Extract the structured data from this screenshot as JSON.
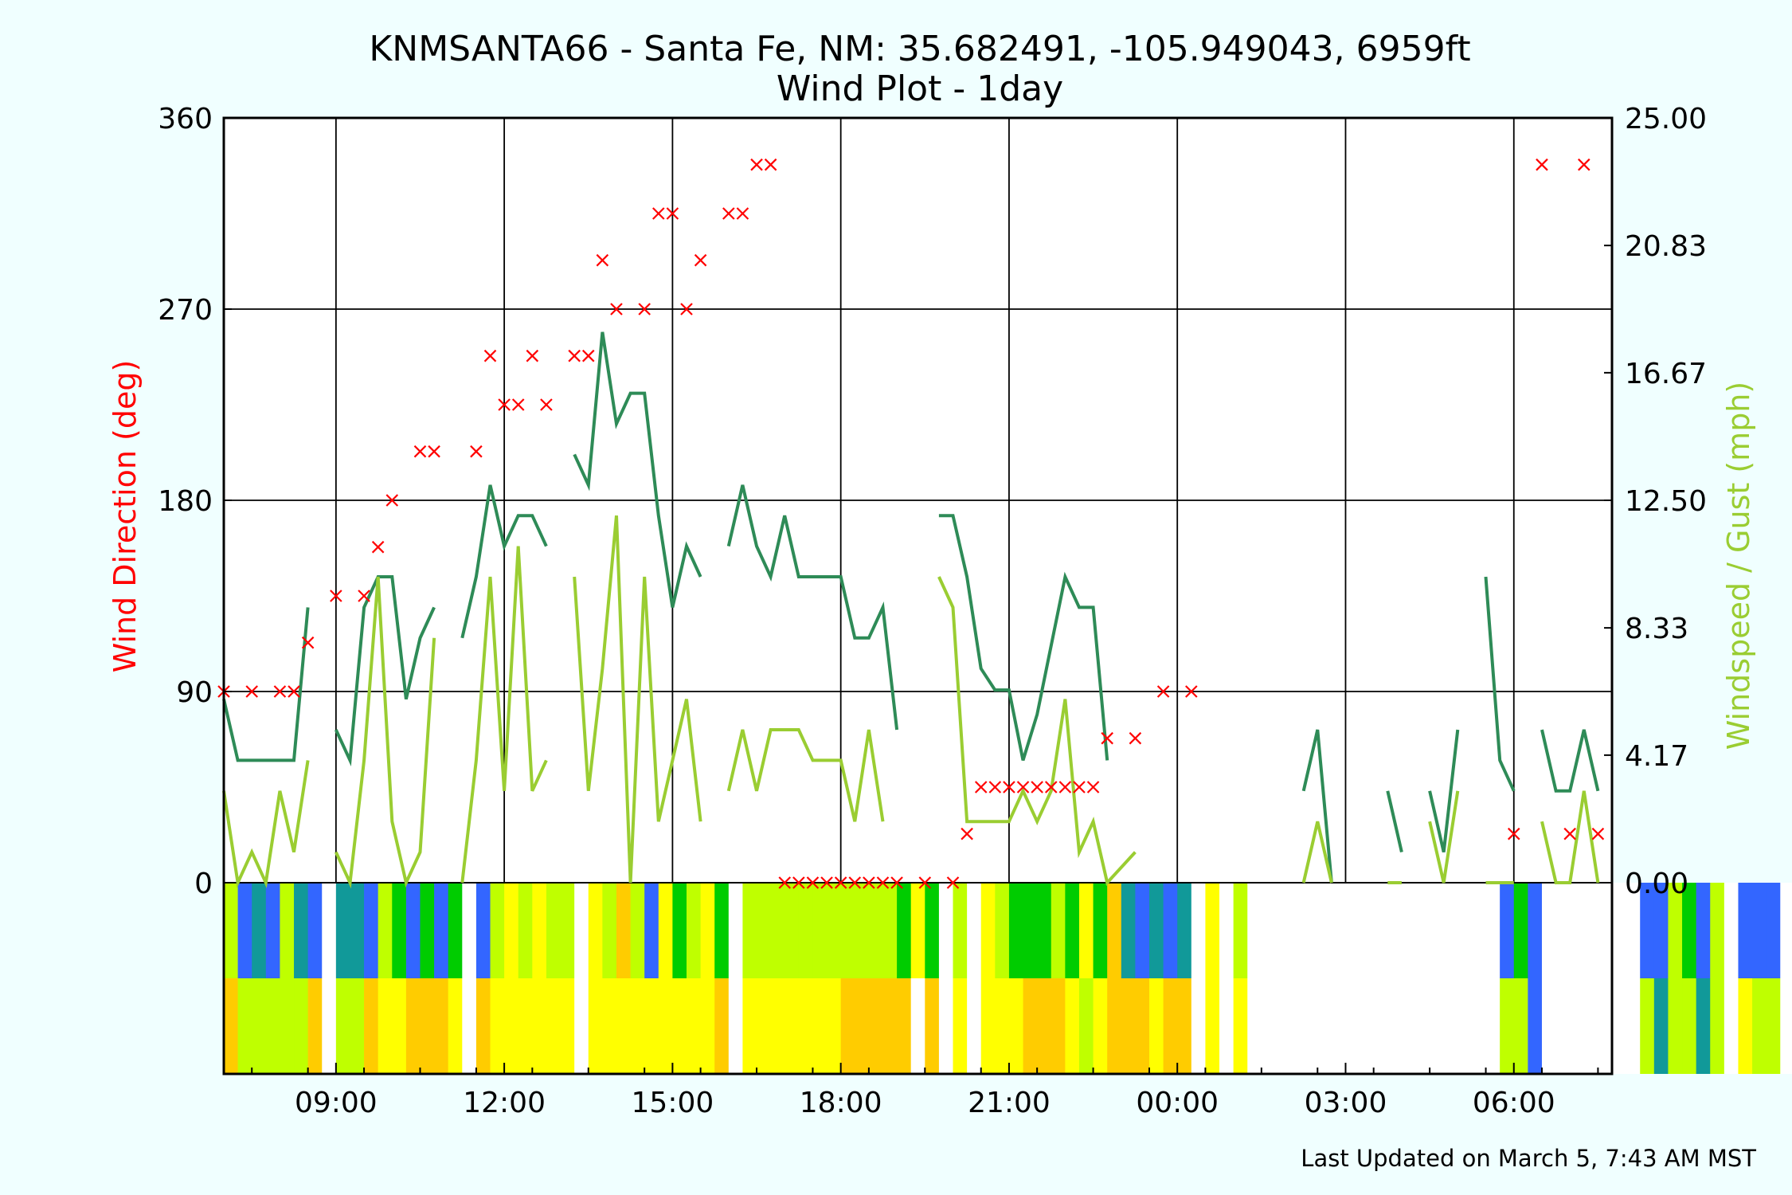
{
  "chart_data": {
    "type": "line",
    "title": "KNMSANTA66 - Santa Fe, NM: 35.682491, -105.949043, 6959ft",
    "subtitle": "Wind Plot - 1day",
    "footer": "Last Updated on March 5, 7:43 AM MST",
    "x_axis": {
      "range_hours": [
        0,
        24.75
      ],
      "tick_labels": [
        "09:00",
        "12:00",
        "15:00",
        "18:00",
        "21:00",
        "00:00",
        "03:00",
        "06:00"
      ],
      "tick_hours": [
        2,
        5,
        8,
        11,
        14,
        17,
        20,
        23
      ],
      "grid": true
    },
    "y_axis_left": {
      "label": "Wind Direction (deg)",
      "label_color": "#ff0000",
      "range": [
        -90,
        360
      ],
      "tick_labels": [
        "0",
        "90",
        "180",
        "270",
        "360"
      ],
      "ticks": [
        0,
        90,
        180,
        270,
        360
      ]
    },
    "y_axis_right": {
      "label": "Windspeed / Gust (mph)",
      "label_color": "#9acd32",
      "range": [
        0,
        25
      ],
      "tick_labels": [
        "0.00",
        "4.17",
        "8.33",
        "12.50",
        "16.67",
        "20.83",
        "25.00"
      ],
      "ticks": [
        0,
        4.17,
        8.33,
        12.5,
        16.67,
        20.83,
        25
      ]
    },
    "series": [
      {
        "kind": "scatter",
        "axis": "left",
        "color": "#ff0000",
        "marker": "x",
        "points": [
          [
            0,
            90
          ],
          [
            0.5,
            90
          ],
          [
            1,
            90
          ],
          [
            1.25,
            90
          ],
          [
            1.5,
            113
          ],
          [
            2,
            135
          ],
          [
            2.5,
            135
          ],
          [
            2.75,
            158
          ],
          [
            3,
            180
          ],
          [
            3.5,
            203
          ],
          [
            3.75,
            203
          ],
          [
            4.5,
            203
          ],
          [
            4.75,
            248
          ],
          [
            5,
            225
          ],
          [
            5.25,
            225
          ],
          [
            5.5,
            248
          ],
          [
            5.75,
            225
          ],
          [
            6.25,
            248
          ],
          [
            6.5,
            248
          ],
          [
            6.75,
            293
          ],
          [
            7,
            270
          ],
          [
            7.5,
            270
          ],
          [
            7.75,
            315
          ],
          [
            8,
            315
          ],
          [
            8.25,
            270
          ],
          [
            8.5,
            293
          ],
          [
            9,
            315
          ],
          [
            9.25,
            315
          ],
          [
            9.5,
            338
          ],
          [
            9.75,
            338
          ],
          [
            10,
            0
          ],
          [
            10.25,
            0
          ],
          [
            10.5,
            0
          ],
          [
            10.75,
            0
          ],
          [
            11,
            0
          ],
          [
            11.25,
            0
          ],
          [
            11.5,
            0
          ],
          [
            11.75,
            0
          ],
          [
            12,
            0
          ],
          [
            12.5,
            0
          ],
          [
            13,
            0
          ],
          [
            13.25,
            23
          ],
          [
            13.5,
            45
          ],
          [
            13.75,
            45
          ],
          [
            14,
            45
          ],
          [
            14.25,
            45
          ],
          [
            14.5,
            45
          ],
          [
            14.75,
            45
          ],
          [
            15,
            45
          ],
          [
            15.25,
            45
          ],
          [
            15.5,
            45
          ],
          [
            15.75,
            68
          ],
          [
            16.25,
            68
          ],
          [
            16.75,
            90
          ],
          [
            17.25,
            90
          ],
          [
            23,
            23
          ],
          [
            24,
            23
          ],
          [
            24.5,
            23
          ],
          [
            23.5,
            338
          ],
          [
            24.25,
            338
          ]
        ]
      },
      {
        "kind": "line",
        "axis": "right",
        "color": "#2e8b57",
        "segments": [
          [
            [
              0,
              6
            ],
            [
              0.25,
              4
            ],
            [
              1.25,
              4
            ],
            [
              1.5,
              9
            ]
          ],
          [
            [
              2,
              5
            ],
            [
              2.25,
              4
            ],
            [
              2.5,
              9
            ],
            [
              2.75,
              10
            ],
            [
              3,
              10
            ],
            [
              3.25,
              6
            ],
            [
              3.5,
              8
            ],
            [
              3.75,
              9
            ]
          ],
          [
            [
              4.25,
              8
            ],
            [
              4.5,
              10
            ],
            [
              4.75,
              13
            ],
            [
              5,
              11
            ],
            [
              5.25,
              12
            ],
            [
              5.5,
              12
            ],
            [
              5.75,
              11
            ]
          ],
          [
            [
              6.25,
              14
            ],
            [
              6.5,
              13
            ],
            [
              6.75,
              18
            ],
            [
              7,
              15
            ],
            [
              7.25,
              16
            ],
            [
              7.5,
              16
            ],
            [
              7.75,
              12
            ],
            [
              8,
              9
            ],
            [
              8.25,
              11
            ],
            [
              8.5,
              10
            ]
          ],
          [
            [
              9,
              11
            ],
            [
              9.25,
              13
            ],
            [
              9.5,
              11
            ],
            [
              9.75,
              10
            ],
            [
              10,
              12
            ],
            [
              10.25,
              10
            ],
            [
              11,
              10
            ],
            [
              11.25,
              8
            ],
            [
              11.5,
              8
            ],
            [
              11.75,
              9
            ],
            [
              12,
              5
            ]
          ],
          [
            [
              12.75,
              12
            ],
            [
              13,
              12
            ],
            [
              13.25,
              10
            ],
            [
              13.5,
              7
            ],
            [
              13.75,
              6.3
            ],
            [
              14,
              6.3
            ],
            [
              14.25,
              4
            ],
            [
              14.5,
              5.5
            ],
            [
              15,
              10
            ],
            [
              15.25,
              9
            ],
            [
              15.5,
              9
            ],
            [
              15.75,
              4
            ]
          ],
          [
            [
              19.25,
              3
            ],
            [
              19.5,
              5
            ],
            [
              19.75,
              0
            ]
          ],
          [
            [
              20.75,
              3
            ],
            [
              21,
              1
            ]
          ],
          [
            [
              21.5,
              3
            ],
            [
              21.75,
              1
            ],
            [
              22,
              5
            ]
          ],
          [
            [
              22.5,
              10
            ],
            [
              22.75,
              4
            ],
            [
              23,
              3
            ]
          ],
          [
            [
              23.5,
              5
            ],
            [
              23.75,
              3
            ],
            [
              24,
              3
            ],
            [
              24.25,
              5
            ],
            [
              24.5,
              3
            ]
          ]
        ]
      },
      {
        "kind": "line",
        "axis": "right",
        "color": "#9acd32",
        "segments": [
          [
            [
              0,
              3
            ],
            [
              0.25,
              0
            ],
            [
              0.5,
              1
            ],
            [
              0.75,
              0
            ],
            [
              1,
              3
            ],
            [
              1.25,
              1
            ],
            [
              1.5,
              4
            ]
          ],
          [
            [
              2,
              1
            ],
            [
              2.25,
              0
            ],
            [
              2.5,
              4
            ],
            [
              2.75,
              10
            ],
            [
              3,
              2
            ],
            [
              3.25,
              0
            ],
            [
              3.5,
              1
            ],
            [
              3.75,
              8
            ]
          ],
          [
            [
              4.25,
              0
            ],
            [
              4.5,
              4
            ],
            [
              4.75,
              10
            ],
            [
              5,
              3
            ],
            [
              5.25,
              11
            ],
            [
              5.5,
              3
            ],
            [
              5.75,
              4
            ]
          ],
          [
            [
              6.25,
              10
            ],
            [
              6.5,
              3
            ],
            [
              6.75,
              7
            ],
            [
              7,
              12
            ],
            [
              7.25,
              0
            ],
            [
              7.5,
              10
            ],
            [
              7.75,
              2
            ],
            [
              8,
              4
            ],
            [
              8.25,
              6
            ],
            [
              8.5,
              2
            ]
          ],
          [
            [
              9,
              3
            ],
            [
              9.25,
              5
            ],
            [
              9.5,
              3
            ],
            [
              9.75,
              5
            ],
            [
              10.25,
              5
            ],
            [
              10.5,
              4
            ],
            [
              11,
              4
            ],
            [
              11.25,
              2
            ],
            [
              11.5,
              5
            ],
            [
              11.75,
              2
            ]
          ],
          [
            [
              12.75,
              10
            ],
            [
              13,
              9
            ],
            [
              13.25,
              2
            ],
            [
              13.5,
              2
            ],
            [
              13.75,
              2
            ],
            [
              14,
              2
            ],
            [
              14.25,
              3
            ],
            [
              14.5,
              2
            ],
            [
              14.75,
              3
            ],
            [
              15,
              6
            ],
            [
              15.25,
              1
            ],
            [
              15.5,
              2
            ],
            [
              15.75,
              0
            ],
            [
              16.25,
              1
            ]
          ],
          [
            [
              19.25,
              0
            ],
            [
              19.5,
              2
            ],
            [
              19.75,
              0
            ]
          ],
          [
            [
              20.75,
              0
            ],
            [
              21,
              0
            ]
          ],
          [
            [
              21.5,
              2
            ],
            [
              21.75,
              0
            ],
            [
              22,
              3
            ]
          ],
          [
            [
              22.5,
              0
            ],
            [
              23,
              0
            ]
          ],
          [
            [
              23.5,
              2
            ],
            [
              23.75,
              0
            ],
            [
              24,
              0
            ],
            [
              24.25,
              3
            ],
            [
              24.5,
              0
            ]
          ]
        ]
      }
    ],
    "bar_rows": {
      "hours_per_bin": 0.25,
      "upper": [
        "#bfff00",
        "#3366ff",
        "#119999",
        "#3366ff",
        "#bfff00",
        "#119999",
        "#3366ff",
        "#ffffff",
        "#119999",
        "#119999",
        "#3366ff",
        "#bfff00",
        "#00cc00",
        "#3366ff",
        "#00cc00",
        "#3366ff",
        "#00cc00",
        "#ffffff",
        "#3366ff",
        "#bfff00",
        "#ffff00",
        "#bfff00",
        "#ffff00",
        "#bfff00",
        "#bfff00",
        "#ffffff",
        "#ffff00",
        "#bfff00",
        "#ffcc00",
        "#bfff00",
        "#3366ff",
        "#ffff00",
        "#00cc00",
        "#bfff00",
        "#ffff00",
        "#00cc00",
        "#ffffff",
        "#bfff00",
        "#bfff00",
        "#bfff00",
        "#bfff00",
        "#bfff00",
        "#bfff00",
        "#bfff00",
        "#bfff00",
        "#bfff00",
        "#bfff00",
        "#bfff00",
        "#00cc00",
        "#ffff00",
        "#00cc00",
        "#ffffff",
        "#bfff00",
        "#ffffff",
        "#ffff00",
        "#bfff00",
        "#00cc00",
        "#00cc00",
        "#00cc00",
        "#bfff00",
        "#00cc00",
        "#ffff00",
        "#00cc00",
        "#ffcc00",
        "#119999",
        "#3366ff",
        "#119999",
        "#3366ff",
        "#119999",
        "#ffffff",
        "#ffff00",
        "#ffffff",
        "#bfff00",
        "#ffffff",
        "#ffffff",
        "#ffffff",
        "#ffffff",
        "#ffffff",
        "#ffffff",
        "#ffffff",
        "#ffffff",
        "#ffffff",
        "#ffffff",
        "#ffffff",
        "#ffffff",
        "#ffffff",
        "#ffffff",
        "#ffffff",
        "#ffffff",
        "#ffffff",
        "#ffffff",
        "#3366ff",
        "#00cc00",
        "#3366ff",
        "#ffffff",
        "#ffffff",
        "#ffffff",
        "#ffffff",
        "#ffffff",
        "#ffffff",
        "#ffffff",
        "#3366ff",
        "#3366ff",
        "#bfff00",
        "#00cc00",
        "#3366ff",
        "#bfff00",
        "#ffffff",
        "#3366ff",
        "#3366ff",
        "#3366ff",
        "#ffffff",
        "#00cc00",
        "#3366ff",
        "#3366ff",
        "#bfff00",
        "#ffffff",
        "#ffffff",
        "#3366ff"
      ],
      "lower": [
        "#ffcc00",
        "#bfff00",
        "#bfff00",
        "#bfff00",
        "#bfff00",
        "#bfff00",
        "#ffcc00",
        "#ffffff",
        "#bfff00",
        "#bfff00",
        "#ffcc00",
        "#ffff00",
        "#ffff00",
        "#ffcc00",
        "#ffcc00",
        "#ffcc00",
        "#ffff00",
        "#ffffff",
        "#ffcc00",
        "#ffff00",
        "#ffff00",
        "#ffff00",
        "#ffff00",
        "#ffff00",
        "#ffff00",
        "#ffffff",
        "#ffff00",
        "#ffff00",
        "#ffff00",
        "#ffff00",
        "#ffff00",
        "#ffff00",
        "#ffff00",
        "#ffff00",
        "#ffff00",
        "#ffcc00",
        "#ffffff",
        "#ffff00",
        "#ffff00",
        "#ffff00",
        "#ffff00",
        "#ffff00",
        "#ffff00",
        "#ffff00",
        "#ffcc00",
        "#ffcc00",
        "#ffcc00",
        "#ffcc00",
        "#ffcc00",
        "#ffffff",
        "#ffcc00",
        "#ffffff",
        "#ffff00",
        "#ffffff",
        "#ffff00",
        "#ffff00",
        "#ffff00",
        "#ffcc00",
        "#ffcc00",
        "#ffcc00",
        "#ffff00",
        "#bfff00",
        "#ffff00",
        "#ffcc00",
        "#ffcc00",
        "#ffcc00",
        "#ffff00",
        "#ffcc00",
        "#ffcc00",
        "#ffffff",
        "#ffff00",
        "#ffffff",
        "#ffff00",
        "#ffffff",
        "#ffffff",
        "#ffffff",
        "#ffffff",
        "#ffffff",
        "#ffffff",
        "#ffffff",
        "#ffffff",
        "#ffffff",
        "#ffffff",
        "#ffffff",
        "#ffffff",
        "#ffffff",
        "#ffffff",
        "#ffffff",
        "#ffffff",
        "#ffffff",
        "#ffffff",
        "#bfff00",
        "#bfff00",
        "#3366ff",
        "#ffffff",
        "#ffffff",
        "#ffffff",
        "#ffffff",
        "#ffffff",
        "#ffffff",
        "#ffffff",
        "#bfff00",
        "#119999",
        "#bfff00",
        "#bfff00",
        "#119999",
        "#bfff00",
        "#ffffff",
        "#ffff00",
        "#bfff00",
        "#bfff00",
        "#ffffff",
        "#bfff00",
        "#bfff00",
        "#bfff00",
        "#bfff00",
        "#bfff00",
        "#bfff00",
        "#bfff00"
      ]
    }
  }
}
